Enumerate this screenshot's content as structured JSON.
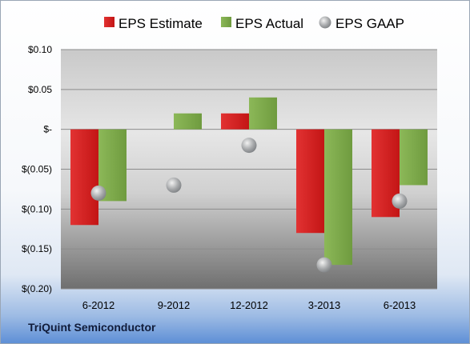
{
  "company": "TriQuint Semiconductor",
  "colors": {
    "estimate": "#d01e1e",
    "actual": "#7ea94a",
    "gaap": "#a9abad"
  },
  "chart_data": {
    "type": "bar",
    "title": "",
    "xlabel": "",
    "ylabel": "",
    "categories": [
      "6-2012",
      "9-2012",
      "12-2012",
      "3-2013",
      "6-2013"
    ],
    "ylim": [
      -0.2,
      0.1
    ],
    "yticks": [
      0.1,
      0.05,
      0,
      -0.05,
      -0.1,
      -0.15,
      -0.2
    ],
    "ytick_labels": [
      "$0.10",
      "$0.05",
      "$-",
      "$(0.05)",
      "$(0.10)",
      "$(0.15)",
      "$(0.20)"
    ],
    "grid": true,
    "legend": "top",
    "series": [
      {
        "name": "EPS Estimate",
        "kind": "bar",
        "values": [
          -0.12,
          null,
          0.02,
          -0.13,
          -0.11
        ]
      },
      {
        "name": "EPS Actual",
        "kind": "bar",
        "values": [
          -0.09,
          0.02,
          0.04,
          -0.17,
          -0.07
        ]
      },
      {
        "name": "EPS GAAP",
        "kind": "marker",
        "values": [
          -0.08,
          -0.07,
          -0.02,
          -0.17,
          -0.09
        ]
      }
    ]
  }
}
